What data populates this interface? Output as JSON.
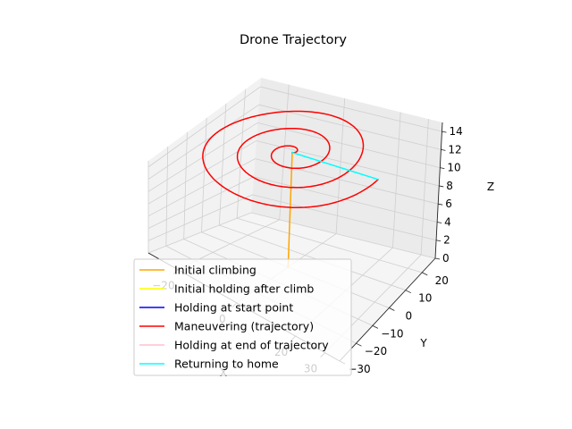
{
  "chart_data": {
    "type": "line",
    "projection": "3d",
    "title": "Drone Trajectory",
    "xlabel": "X",
    "ylabel": "Y",
    "zlabel": "Z",
    "xlim": [
      -30,
      35
    ],
    "ylim": [
      -30,
      28
    ],
    "zlim": [
      0,
      15
    ],
    "x_ticks": [
      -20,
      0,
      20,
      30
    ],
    "x_tick_labels": [
      "−20",
      "0",
      "20",
      "30"
    ],
    "y_ticks": [
      -30,
      -20,
      -10,
      0,
      10,
      20
    ],
    "y_tick_labels": [
      "−30",
      "−20",
      "−10",
      "0",
      "10",
      "20"
    ],
    "z_ticks": [
      0,
      2,
      4,
      6,
      8,
      10,
      12,
      14
    ],
    "z_tick_labels": [
      "0",
      "2",
      "4",
      "6",
      "8",
      "10",
      "12",
      "14"
    ],
    "grid": true,
    "legend_position": "lower-left",
    "series": [
      {
        "name": "Initial climbing",
        "color": "#ffa500",
        "points": [
          [
            0,
            0,
            0
          ],
          [
            0,
            0,
            14
          ]
        ]
      },
      {
        "name": "Initial holding after climb",
        "color": "#ffff00",
        "points": [
          [
            0,
            0,
            14
          ],
          [
            0,
            0,
            14
          ]
        ]
      },
      {
        "name": "Holding at start point",
        "color": "#0000ff",
        "points": [
          [
            0,
            0,
            14
          ],
          [
            0,
            0,
            14
          ]
        ]
      },
      {
        "name": "Maneuvering (trajectory)",
        "color": "#ff0000",
        "spiral": {
          "center": [
            0,
            0
          ],
          "z": 14,
          "turns": 3,
          "start_radius": 0,
          "end_radius": 30
        }
      },
      {
        "name": "Holding at end of trajectory",
        "color": "#ffc0cb",
        "points": [
          [
            30,
            0,
            14
          ],
          [
            30,
            0,
            14
          ]
        ]
      },
      {
        "name": "Returning to home",
        "color": "#00ffff",
        "points": [
          [
            30,
            0,
            14
          ],
          [
            0,
            0,
            14
          ]
        ]
      }
    ]
  }
}
